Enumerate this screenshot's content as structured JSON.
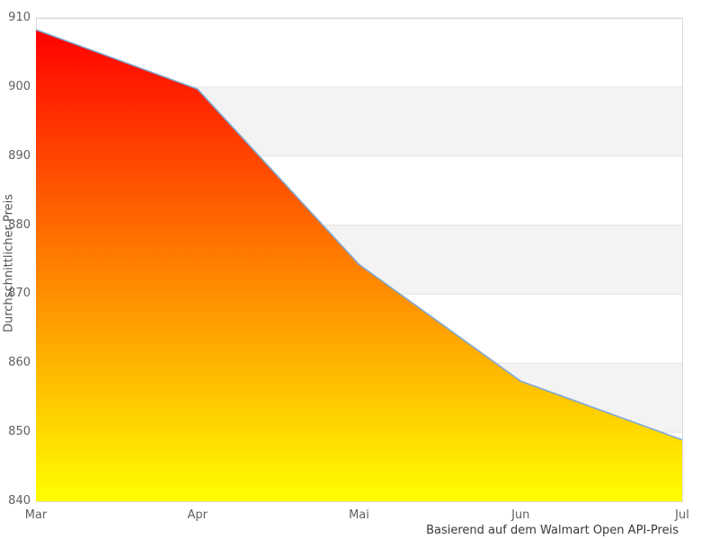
{
  "chart": {
    "caption": "Basierend auf dem Walmart Open API-Preis",
    "colors": {
      "line": "#7fa9d3",
      "gradient_top": "#ff0000",
      "gradient_bottom": "#ffff00",
      "band": "#f3f3f3",
      "gridline": "#e3e3e3",
      "border": "#d9d9d9"
    }
  },
  "chart_data": {
    "type": "area",
    "title": "",
    "subtitle": "Basierend auf dem Walmart Open API-Preis",
    "xlabel": "",
    "ylabel": "Durchschnittlicher Preis",
    "x": [
      "Mar",
      "Apr",
      "Mai",
      "Jun",
      "Jul"
    ],
    "series": [
      {
        "name": "Durchschnittlicher Preis",
        "values": [
          908.3,
          899.7,
          874.3,
          857.4,
          848.9
        ]
      }
    ],
    "ylim": [
      840,
      910
    ],
    "yticks": [
      840,
      850,
      860,
      870,
      880,
      890,
      900,
      910
    ],
    "grid": "horizontal gridlines every 10 units with alternating gray bands (850-860, 870-880, 890-900 shaded)",
    "legend_position": "none",
    "fill": "vertical linear gradient, red at top to yellow at bottom",
    "annotations": [
      "Basierend auf dem Walmart Open API-Preis"
    ]
  }
}
